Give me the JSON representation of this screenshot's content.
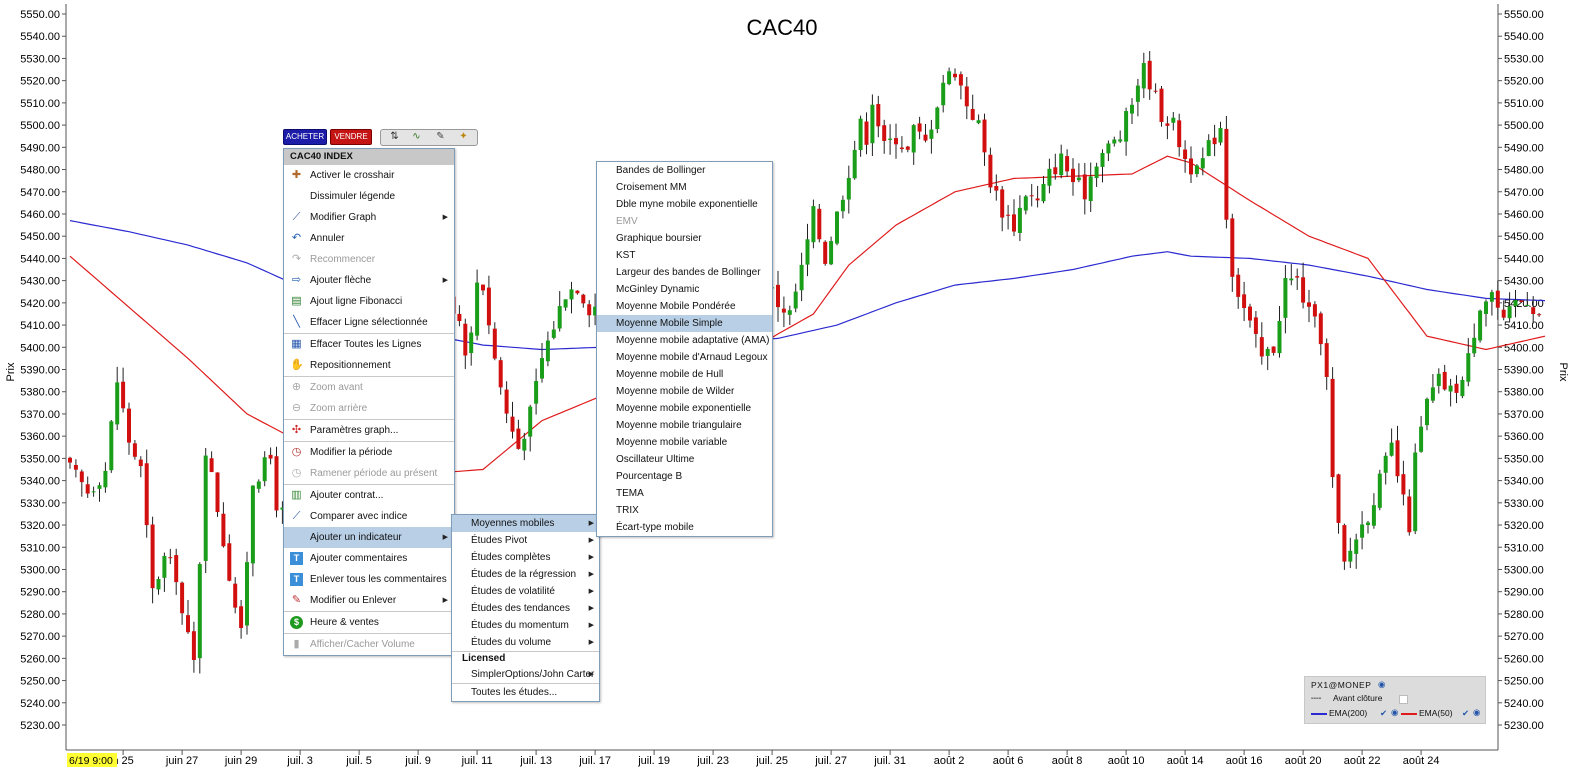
{
  "chart_data": {
    "type": "candlestick",
    "title": "CAC40",
    "ylabel": "Prix",
    "ylim": [
      5222,
      5552
    ],
    "yticks": [
      "5550.00",
      "5540.00",
      "5530.00",
      "5520.00",
      "5510.00",
      "5500.00",
      "5490.00",
      "5480.00",
      "5470.00",
      "5460.00",
      "5450.00",
      "5440.00",
      "5430.00",
      "5420.00",
      "5410.00",
      "5400.00",
      "5390.00",
      "5380.00",
      "5370.00",
      "5360.00",
      "5350.00",
      "5340.00",
      "5330.00",
      "5320.00",
      "5310.00",
      "5300.00",
      "5290.00",
      "5280.00",
      "5270.00",
      "5260.00",
      "5250.00",
      "5240.00",
      "5230.00"
    ],
    "ytick_values": [
      5550,
      5540,
      5530,
      5520,
      5510,
      5500,
      5490,
      5480,
      5470,
      5460,
      5450,
      5440,
      5430,
      5420,
      5410,
      5400,
      5390,
      5380,
      5370,
      5360,
      5350,
      5340,
      5330,
      5320,
      5310,
      5300,
      5290,
      5280,
      5270,
      5260,
      5250,
      5240,
      5230
    ],
    "cursor_label": "6/19 9:00",
    "xticks": [
      "n 25",
      "juin 27",
      "juin 29",
      "juil. 3",
      "juil. 5",
      "juil. 9",
      "juil. 11",
      "juil. 13",
      "juil. 17",
      "juil. 19",
      "juil. 23",
      "juil. 25",
      "juil. 27",
      "juil. 31",
      "août 2",
      "août 6",
      "août 8",
      "août 10",
      "août 14",
      "août 16",
      "août 20",
      "août 22",
      "août 24"
    ],
    "xtick_index": [
      9,
      19,
      29,
      39,
      49,
      59,
      69,
      79,
      89,
      99,
      109,
      119,
      129,
      139,
      149,
      159,
      169,
      179,
      189,
      199,
      209,
      219,
      229
    ],
    "anchors": [
      [
        0,
        5345
      ],
      [
        3,
        5335
      ],
      [
        6,
        5345
      ],
      [
        8,
        5385
      ],
      [
        10,
        5358
      ],
      [
        12,
        5345
      ],
      [
        14,
        5290
      ],
      [
        16,
        5305
      ],
      [
        18,
        5298
      ],
      [
        19,
        5280
      ],
      [
        21,
        5258
      ],
      [
        22,
        5305
      ],
      [
        23,
        5355
      ],
      [
        25,
        5328
      ],
      [
        27,
        5298
      ],
      [
        29,
        5270
      ],
      [
        31,
        5340
      ],
      [
        34,
        5350
      ],
      [
        35,
        5330
      ],
      [
        36,
        5325
      ],
      [
        37,
        5330
      ],
      [
        38,
        5318
      ],
      [
        39,
        5265
      ],
      [
        40,
        5272
      ],
      [
        42,
        5330
      ],
      [
        44,
        5390
      ],
      [
        46,
        5420
      ],
      [
        48,
        5410
      ],
      [
        52,
        5395
      ],
      [
        56,
        5405
      ],
      [
        60,
        5420
      ],
      [
        64,
        5425
      ],
      [
        66,
        5412
      ],
      [
        67,
        5400
      ],
      [
        68,
        5405
      ],
      [
        69,
        5430
      ],
      [
        70,
        5428
      ],
      [
        72,
        5395
      ],
      [
        74,
        5370
      ],
      [
        76,
        5355
      ],
      [
        78,
        5370
      ],
      [
        80,
        5395
      ],
      [
        82,
        5410
      ],
      [
        84,
        5425
      ],
      [
        86,
        5428
      ],
      [
        88,
        5418
      ],
      [
        90,
        5420
      ],
      [
        92,
        5425
      ],
      [
        96,
        5420
      ],
      [
        100,
        5415
      ],
      [
        104,
        5410
      ],
      [
        108,
        5410
      ],
      [
        112,
        5415
      ],
      [
        114,
        5430
      ],
      [
        116,
        5440
      ],
      [
        118,
        5430
      ],
      [
        120,
        5420
      ],
      [
        122,
        5415
      ],
      [
        124,
        5435
      ],
      [
        126,
        5460
      ],
      [
        128,
        5440
      ],
      [
        130,
        5460
      ],
      [
        132,
        5480
      ],
      [
        134,
        5500
      ],
      [
        135,
        5495
      ],
      [
        136,
        5512
      ],
      [
        138,
        5490
      ],
      [
        140,
        5495
      ],
      [
        142,
        5488
      ],
      [
        143,
        5498
      ],
      [
        145,
        5492
      ],
      [
        148,
        5520
      ],
      [
        150,
        5525
      ],
      [
        152,
        5510
      ],
      [
        153,
        5505
      ],
      [
        154,
        5500
      ],
      [
        156,
        5475
      ],
      [
        158,
        5462
      ],
      [
        160,
        5455
      ],
      [
        162,
        5470
      ],
      [
        164,
        5465
      ],
      [
        166,
        5478
      ],
      [
        168,
        5485
      ],
      [
        170,
        5475
      ],
      [
        172,
        5470
      ],
      [
        174,
        5485
      ],
      [
        176,
        5490
      ],
      [
        178,
        5495
      ],
      [
        180,
        5510
      ],
      [
        181,
        5520
      ],
      [
        182,
        5525
      ],
      [
        183,
        5520
      ],
      [
        185,
        5505
      ],
      [
        187,
        5500
      ],
      [
        189,
        5485
      ],
      [
        191,
        5478
      ],
      [
        193,
        5490
      ],
      [
        195,
        5500
      ],
      [
        196,
        5460
      ],
      [
        197,
        5435
      ],
      [
        198,
        5425
      ],
      [
        200,
        5410
      ],
      [
        202,
        5395
      ],
      [
        204,
        5400
      ],
      [
        206,
        5430
      ],
      [
        208,
        5430
      ],
      [
        210,
        5415
      ],
      [
        212,
        5405
      ],
      [
        213,
        5385
      ],
      [
        214,
        5340
      ],
      [
        215,
        5318
      ],
      [
        216,
        5302
      ],
      [
        218,
        5315
      ],
      [
        220,
        5325
      ],
      [
        222,
        5340
      ],
      [
        224,
        5355
      ],
      [
        226,
        5330
      ],
      [
        227,
        5320
      ],
      [
        228,
        5350
      ],
      [
        230,
        5375
      ],
      [
        232,
        5385
      ],
      [
        234,
        5380
      ],
      [
        236,
        5385
      ],
      [
        237,
        5395
      ],
      [
        239,
        5420
      ],
      [
        241,
        5425
      ],
      [
        243,
        5410
      ],
      [
        245,
        5420
      ],
      [
        247,
        5422
      ],
      [
        249,
        5415
      ]
    ],
    "series": [
      {
        "name": "EMA(200)",
        "color": "#2b2bd1",
        "points": [
          [
            0,
            5457
          ],
          [
            10,
            5452
          ],
          [
            20,
            5446
          ],
          [
            30,
            5438
          ],
          [
            40,
            5426
          ],
          [
            50,
            5415
          ],
          [
            60,
            5406
          ],
          [
            70,
            5401
          ],
          [
            80,
            5399
          ],
          [
            90,
            5400
          ],
          [
            100,
            5401
          ],
          [
            110,
            5402
          ],
          [
            120,
            5404
          ],
          [
            130,
            5410
          ],
          [
            140,
            5420
          ],
          [
            150,
            5428
          ],
          [
            160,
            5431
          ],
          [
            170,
            5435
          ],
          [
            180,
            5441
          ],
          [
            186,
            5443
          ],
          [
            190,
            5441
          ],
          [
            200,
            5440
          ],
          [
            210,
            5437
          ],
          [
            220,
            5432
          ],
          [
            230,
            5426
          ],
          [
            240,
            5422
          ],
          [
            250,
            5421
          ]
        ]
      },
      {
        "name": "EMA(50)",
        "color": "#e01b1b",
        "points": [
          [
            0,
            5441
          ],
          [
            10,
            5418
          ],
          [
            20,
            5395
          ],
          [
            30,
            5370
          ],
          [
            40,
            5356
          ],
          [
            50,
            5347
          ],
          [
            60,
            5343
          ],
          [
            70,
            5345
          ],
          [
            80,
            5367
          ],
          [
            90,
            5378
          ],
          [
            100,
            5381
          ],
          [
            110,
            5390
          ],
          [
            120,
            5406
          ],
          [
            126,
            5415
          ],
          [
            132,
            5437
          ],
          [
            140,
            5455
          ],
          [
            150,
            5470
          ],
          [
            160,
            5476
          ],
          [
            170,
            5477
          ],
          [
            180,
            5478
          ],
          [
            186,
            5486
          ],
          [
            190,
            5483
          ],
          [
            200,
            5466
          ],
          [
            210,
            5450
          ],
          [
            220,
            5440
          ],
          [
            230,
            5405
          ],
          [
            240,
            5399
          ],
          [
            250,
            5405
          ]
        ]
      }
    ]
  },
  "toolbar": {
    "buy_label": "ACHETER",
    "sell_label": "VENDRE"
  },
  "context_menu": {
    "title": "CAC40 INDEX",
    "items": [
      {
        "label": "Activer le crosshair",
        "icon": "crosshair-icon"
      },
      {
        "label": "Dissimuler légende",
        "icon": ""
      },
      {
        "label": "Modifier Graph",
        "icon": "chart-edit-icon",
        "submenu": true
      },
      {
        "label": "Annuler",
        "icon": "undo-icon"
      },
      {
        "label": "Recommencer",
        "icon": "redo-icon",
        "disabled": true
      },
      {
        "label": "Ajouter flèche",
        "icon": "arrow-icon",
        "submenu": true
      },
      {
        "label": "Ajout ligne Fibonacci",
        "icon": "fibonacci-icon"
      },
      {
        "label": "Effacer Ligne sélectionnée",
        "icon": "line-erase-icon"
      },
      {
        "label": "Effacer Toutes les Lignes",
        "icon": "lines-erase-icon",
        "sep": true
      },
      {
        "label": "Repositionnement",
        "icon": "hand-icon"
      },
      {
        "label": "Zoom avant",
        "icon": "zoom-in-icon",
        "disabled": true,
        "sep": true
      },
      {
        "label": "Zoom arrière",
        "icon": "zoom-out-icon",
        "disabled": true
      },
      {
        "label": "Paramètres graph...",
        "icon": "settings-icon",
        "sep": true
      },
      {
        "label": "Modifier la période",
        "icon": "clock-icon",
        "sep": true
      },
      {
        "label": "Ramener période au présent",
        "icon": "clock-reset-icon",
        "disabled": true
      },
      {
        "label": "Ajouter contrat...",
        "icon": "contract-icon",
        "sep": true
      },
      {
        "label": "Comparer avec indice",
        "icon": "compare-icon"
      },
      {
        "label": "Ajouter un indicateur",
        "icon": "",
        "submenu": true,
        "highlight": true
      },
      {
        "label": "Ajouter commentaires",
        "icon": "comment-icon"
      },
      {
        "label": "Enlever tous les commentaires",
        "icon": "comment-remove-icon"
      },
      {
        "label": "Modifier ou Enlever",
        "icon": "pencil-icon",
        "submenu": true
      },
      {
        "label": "Heure & ventes",
        "icon": "dollar-icon",
        "sep": true
      },
      {
        "label": "Afficher/Cacher Volume",
        "icon": "volume-icon",
        "disabled": true,
        "sep": true
      }
    ]
  },
  "indicator_menu": {
    "items": [
      {
        "label": "Moyennes mobiles",
        "submenu": true,
        "highlight": true
      },
      {
        "label": "Études Pivot",
        "submenu": true
      },
      {
        "label": "Études complètes",
        "submenu": true
      },
      {
        "label": "Études de la régression",
        "submenu": true
      },
      {
        "label": "Études de volatilité",
        "submenu": true
      },
      {
        "label": "Études des tendances",
        "submenu": true
      },
      {
        "label": "Études du momentum",
        "submenu": true
      },
      {
        "label": "Études du volume",
        "submenu": true
      }
    ],
    "licensed_header": "Licensed",
    "licensed_item": "SimplerOptions/John Carter",
    "all_studies": "Toutes les études..."
  },
  "moving_avg_menu": {
    "items": [
      {
        "label": "Bandes de Bollinger"
      },
      {
        "label": "Croisement MM"
      },
      {
        "label": "Dble myne mobile exponentielle"
      },
      {
        "label": "EMV",
        "disabled": true
      },
      {
        "label": "Graphique boursier"
      },
      {
        "label": "KST"
      },
      {
        "label": "Largeur des bandes de Bollinger"
      },
      {
        "label": "McGinley Dynamic"
      },
      {
        "label": "Moyenne Mobile Pondérée"
      },
      {
        "label": "Moyenne Mobile Simple",
        "highlight": true
      },
      {
        "label": "Moyenne mobile adaptative (AMA)"
      },
      {
        "label": "Moyenne mobile d'Arnaud Legoux"
      },
      {
        "label": "Moyenne mobile de Hull"
      },
      {
        "label": "Moyenne mobile de Wilder"
      },
      {
        "label": "Moyenne mobile exponentielle"
      },
      {
        "label": "Moyenne mobile triangulaire"
      },
      {
        "label": "Moyenne mobile variable"
      },
      {
        "label": "Oscillateur Ultime"
      },
      {
        "label": "Pourcentage B"
      },
      {
        "label": "TEMA"
      },
      {
        "label": "TRIX"
      },
      {
        "label": "Écart-type mobile"
      }
    ]
  },
  "legend": {
    "symbol": "PX1@MONEP",
    "pre_close": "Avant clôture",
    "ema200": "EMA(200)",
    "ema50": "EMA(50)"
  },
  "colors": {
    "up": "#1a9e1a",
    "down": "#d10f0f",
    "ema200": "#2b2bd1",
    "ema50": "#e01b1b",
    "menu_highlight": "#b8cfe6",
    "cursor_label_bg": "#ffff33"
  }
}
